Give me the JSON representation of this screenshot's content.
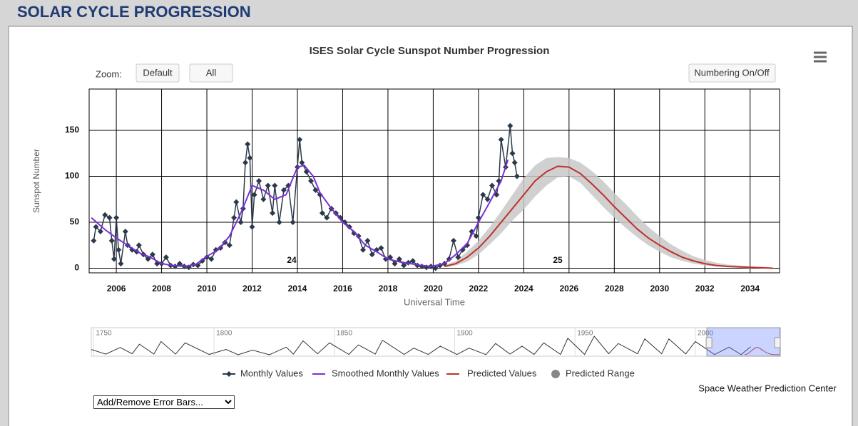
{
  "header": {
    "title": "SOLAR CYCLE PROGRESSION"
  },
  "controls": {
    "zoom_label": "Zoom:",
    "buttons": [
      "Default",
      "All"
    ],
    "numbering": "Numbering On/Off",
    "error_bars": "Add/Remove Error Bars..."
  },
  "credit": "Space Weather Prediction Center",
  "chart_data": {
    "type": "line",
    "title": "ISES Solar Cycle Sunspot Number Progression",
    "x_label": "Universal Time",
    "y_label": "Sunspot Number",
    "xlim": [
      2004.8,
      2035.3
    ],
    "xticks": [
      2006,
      2008,
      2010,
      2012,
      2014,
      2016,
      2018,
      2020,
      2022,
      2024,
      2026,
      2028,
      2030,
      2032,
      2034
    ],
    "ylim": [
      -5,
      195
    ],
    "yticks": [
      0,
      50,
      100,
      150
    ],
    "grid": true,
    "annotations": [
      "24",
      "25"
    ],
    "series": [
      {
        "name": "Monthly Values",
        "color": "#2b3a4a",
        "x": [
          2005.0,
          2005.1,
          2005.3,
          2005.5,
          2005.7,
          2005.8,
          2005.9,
          2006.0,
          2006.1,
          2006.2,
          2006.4,
          2006.5,
          2006.7,
          2006.9,
          2007.0,
          2007.2,
          2007.4,
          2007.6,
          2007.8,
          2008.0,
          2008.2,
          2008.4,
          2008.6,
          2008.8,
          2009.0,
          2009.2,
          2009.4,
          2009.6,
          2009.8,
          2010.0,
          2010.2,
          2010.4,
          2010.6,
          2010.8,
          2011.0,
          2011.2,
          2011.3,
          2011.5,
          2011.6,
          2011.7,
          2011.8,
          2011.9,
          2012.0,
          2012.1,
          2012.3,
          2012.5,
          2012.7,
          2012.9,
          2013.0,
          2013.2,
          2013.4,
          2013.6,
          2013.8,
          2014.0,
          2014.1,
          2014.2,
          2014.4,
          2014.6,
          2014.8,
          2015.0,
          2015.1,
          2015.3,
          2015.5,
          2015.7,
          2015.9,
          2016.1,
          2016.3,
          2016.5,
          2016.7,
          2016.9,
          2017.1,
          2017.3,
          2017.5,
          2017.7,
          2017.9,
          2018.1,
          2018.3,
          2018.5,
          2018.7,
          2018.9,
          2019.1,
          2019.3,
          2019.5,
          2019.7,
          2019.9,
          2020.1,
          2020.3,
          2020.5,
          2020.7,
          2020.9,
          2021.1,
          2021.3,
          2021.5,
          2021.7,
          2021.9,
          2022.0,
          2022.2,
          2022.4,
          2022.6,
          2022.8,
          2022.9,
          2023.0,
          2023.2,
          2023.4,
          2023.5,
          2023.6,
          2023.7
        ],
        "values": [
          30,
          45,
          40,
          58,
          55,
          30,
          10,
          55,
          20,
          5,
          40,
          25,
          20,
          18,
          25,
          15,
          10,
          15,
          5,
          5,
          12,
          3,
          2,
          5,
          2,
          1,
          4,
          3,
          8,
          12,
          10,
          20,
          22,
          28,
          25,
          55,
          72,
          50,
          65,
          115,
          135,
          120,
          45,
          80,
          95,
          75,
          90,
          60,
          90,
          50,
          85,
          90,
          50,
          110,
          140,
          115,
          105,
          95,
          85,
          80,
          60,
          55,
          65,
          60,
          55,
          50,
          45,
          38,
          35,
          20,
          30,
          15,
          20,
          22,
          10,
          12,
          5,
          10,
          3,
          6,
          8,
          3,
          2,
          1,
          2,
          0,
          3,
          5,
          10,
          30,
          12,
          20,
          25,
          40,
          35,
          55,
          80,
          75,
          90,
          80,
          95,
          140,
          110,
          155,
          125,
          115,
          100
        ]
      },
      {
        "name": "Smoothed Monthly Values",
        "color": "#7b2fd6",
        "x": [
          2004.9,
          2005.5,
          2006.0,
          2006.5,
          2007.0,
          2007.5,
          2008.0,
          2008.5,
          2009.0,
          2009.5,
          2010.0,
          2010.5,
          2011.0,
          2011.5,
          2012.0,
          2012.5,
          2013.0,
          2013.5,
          2014.0,
          2014.3,
          2014.7,
          2015.0,
          2015.5,
          2016.0,
          2016.5,
          2017.0,
          2017.5,
          2018.0,
          2018.5,
          2019.0,
          2019.5,
          2019.9,
          2020.5,
          2021.0,
          2021.5,
          2022.0,
          2022.5,
          2023.0,
          2023.3
        ],
        "values": [
          55,
          42,
          33,
          25,
          17,
          12,
          5,
          3,
          2,
          4,
          13,
          20,
          35,
          60,
          90,
          85,
          75,
          80,
          110,
          112,
          100,
          82,
          65,
          50,
          40,
          25,
          18,
          10,
          7,
          5,
          3,
          2,
          5,
          15,
          27,
          50,
          72,
          95,
          118
        ]
      },
      {
        "name": "Predicted Values",
        "color": "#c0302a",
        "x": [
          2020.5,
          2021,
          2021.5,
          2022,
          2022.5,
          2023,
          2023.5,
          2024,
          2024.5,
          2025,
          2025.5,
          2026,
          2026.5,
          2027,
          2027.5,
          2028,
          2028.5,
          2029,
          2029.5,
          2030,
          2030.5,
          2031,
          2031.5,
          2032,
          2032.5,
          2033,
          2034,
          2035
        ],
        "values": [
          2,
          5,
          12,
          22,
          35,
          50,
          65,
          80,
          95,
          105,
          111,
          110,
          103,
          92,
          80,
          67,
          55,
          43,
          33,
          25,
          18,
          12,
          8,
          5,
          3,
          2,
          1,
          0
        ]
      },
      {
        "name": "Predicted Range",
        "color": "#c8c8c8",
        "x": [
          2020.5,
          2021,
          2021.5,
          2022,
          2022.5,
          2023,
          2023.5,
          2024,
          2024.5,
          2025,
          2025.5,
          2026,
          2026.5,
          2027,
          2027.5,
          2028,
          2028.5,
          2029,
          2029.5,
          2030,
          2030.5,
          2031,
          2031.5,
          2032,
          2032.5,
          2033,
          2034,
          2035
        ],
        "high": [
          3,
          8,
          18,
          30,
          45,
          62,
          80,
          98,
          112,
          120,
          121,
          120,
          115,
          106,
          95,
          82,
          70,
          57,
          45,
          35,
          26,
          19,
          13,
          9,
          6,
          4,
          2,
          1
        ],
        "low": [
          1,
          3,
          7,
          15,
          26,
          38,
          52,
          64,
          78,
          90,
          99,
          100,
          93,
          80,
          67,
          55,
          44,
          34,
          25,
          18,
          12,
          8,
          5,
          3,
          2,
          1,
          0,
          0
        ]
      }
    ],
    "navigator": {
      "xlim": [
        1749,
        2035
      ],
      "xticks": [
        1750,
        1800,
        1850,
        1900,
        1950,
        2000
      ],
      "x": [
        1749,
        1755,
        1761,
        1766,
        1769,
        1775,
        1778,
        1784,
        1788,
        1798,
        1805,
        1810,
        1816,
        1823,
        1830,
        1833,
        1837,
        1843,
        1848,
        1856,
        1860,
        1867,
        1870,
        1879,
        1883,
        1889,
        1894,
        1901,
        1906,
        1913,
        1917,
        1923,
        1928,
        1933,
        1937,
        1944,
        1947,
        1954,
        1958,
        1964,
        1968,
        1976,
        1979,
        1986,
        1989,
        1996,
        2000,
        2008,
        2014,
        2019,
        2023
      ],
      "values": [
        80,
        10,
        110,
        15,
        160,
        10,
        200,
        10,
        180,
        5,
        80,
        0,
        70,
        0,
        115,
        10,
        210,
        15,
        180,
        5,
        150,
        10,
        220,
        5,
        100,
        5,
        130,
        5,
        100,
        2,
        170,
        10,
        130,
        5,
        180,
        5,
        250,
        5,
        280,
        15,
        170,
        15,
        240,
        15,
        240,
        12,
        200,
        3,
        115,
        2,
        120
      ]
    }
  }
}
